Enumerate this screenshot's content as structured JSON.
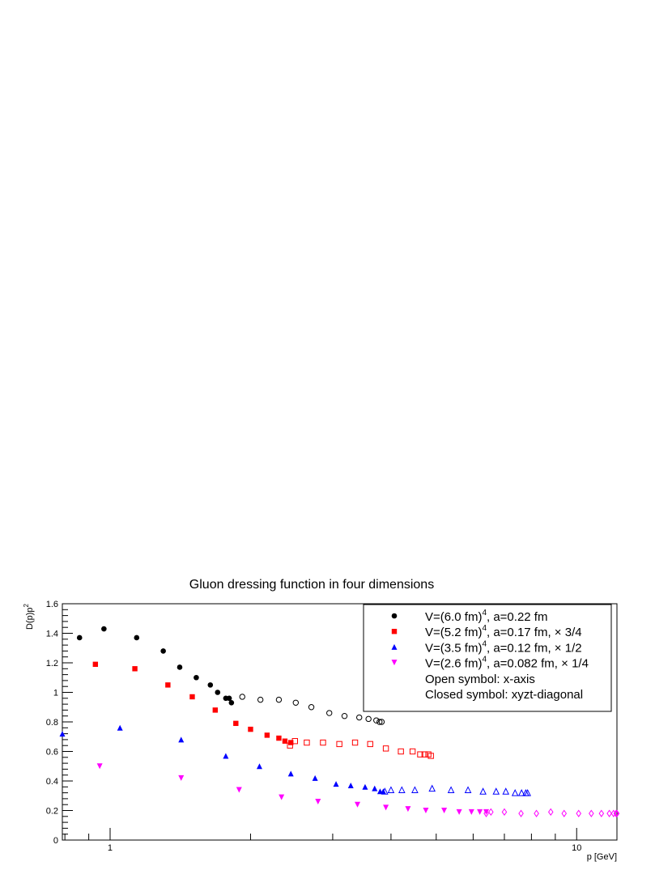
{
  "chart_data": {
    "type": "scatter",
    "title": "Gluon dressing function in four dimensions",
    "xlabel": "p [GeV]",
    "ylabel": "D(p)p",
    "ylabel_sup": "2",
    "xscale": "log",
    "xlim": [
      0.79,
      12.2
    ],
    "ylim": [
      0,
      1.6
    ],
    "x_tick_labels": [
      {
        "value": 1,
        "label": "1"
      },
      {
        "value": 10,
        "label": "10"
      }
    ],
    "y_tick_labels": [
      {
        "value": 0,
        "label": "0"
      },
      {
        "value": 0.2,
        "label": "0.2"
      },
      {
        "value": 0.4,
        "label": "0.4"
      },
      {
        "value": 0.6,
        "label": "0.6"
      },
      {
        "value": 0.8,
        "label": "0.8"
      },
      {
        "value": 1,
        "label": "1"
      },
      {
        "value": 1.2,
        "label": "1.2"
      },
      {
        "value": 1.4,
        "label": "1.4"
      },
      {
        "value": 1.6,
        "label": "1.6"
      }
    ],
    "legend_position": "top-right",
    "series": [
      {
        "name": "V=(6.0 fm)",
        "sup": "4",
        "name_rest": ", a=0.22 fm",
        "color": "#000000",
        "marker": "circle",
        "closed": {
          "x": [
            0.86,
            0.97,
            1.14,
            1.3,
            1.41,
            1.53,
            1.64,
            1.7,
            1.77,
            1.8,
            1.82
          ],
          "y": [
            1.37,
            1.43,
            1.37,
            1.28,
            1.17,
            1.1,
            1.05,
            1.0,
            0.96,
            0.96,
            0.93
          ]
        },
        "open": {
          "x": [
            1.92,
            2.1,
            2.3,
            2.5,
            2.7,
            2.95,
            3.18,
            3.42,
            3.58,
            3.72,
            3.78,
            3.82
          ],
          "y": [
            0.97,
            0.95,
            0.95,
            0.93,
            0.9,
            0.86,
            0.84,
            0.83,
            0.82,
            0.81,
            0.8,
            0.8
          ]
        }
      },
      {
        "name": "V=(5.2 fm)",
        "sup": "4",
        "name_rest": ", a=0.17 fm, × 3/4",
        "color": "#ff0000",
        "marker": "square",
        "closed": {
          "x": [
            0.93,
            1.13,
            1.33,
            1.5,
            1.68,
            1.86,
            2.0,
            2.17,
            2.3,
            2.37,
            2.44
          ],
          "y": [
            1.19,
            1.16,
            1.05,
            0.97,
            0.88,
            0.79,
            0.75,
            0.71,
            0.69,
            0.67,
            0.66
          ]
        },
        "open": {
          "x": [
            2.43,
            2.49,
            2.64,
            2.86,
            3.1,
            3.35,
            3.61,
            3.9,
            4.2,
            4.45,
            4.62,
            4.72,
            4.81,
            4.87
          ],
          "y": [
            0.64,
            0.67,
            0.66,
            0.66,
            0.65,
            0.66,
            0.65,
            0.62,
            0.6,
            0.6,
            0.58,
            0.58,
            0.58,
            0.57
          ]
        }
      },
      {
        "name": "V=(3.5 fm)",
        "sup": "4",
        "name_rest": ", a=0.12 fm, × 1/2",
        "color": "#0000ff",
        "marker": "triangle-up",
        "closed": {
          "x": [
            0.79,
            1.05,
            1.42,
            1.77,
            2.09,
            2.44,
            2.75,
            3.05,
            3.28,
            3.52,
            3.69,
            3.79,
            3.85
          ],
          "y": [
            0.72,
            0.76,
            0.68,
            0.57,
            0.5,
            0.45,
            0.42,
            0.38,
            0.37,
            0.36,
            0.35,
            0.33,
            0.33
          ]
        },
        "open": {
          "x": [
            3.88,
            4.0,
            4.22,
            4.5,
            4.9,
            5.38,
            5.85,
            6.3,
            6.72,
            7.05,
            7.38,
            7.62,
            7.78,
            7.85
          ],
          "y": [
            0.33,
            0.34,
            0.34,
            0.34,
            0.35,
            0.34,
            0.34,
            0.33,
            0.33,
            0.33,
            0.32,
            0.32,
            0.32,
            0.32
          ]
        }
      },
      {
        "name": "V=(2.6 fm)",
        "sup": "4",
        "name_rest": ", a=0.082 fm, × 1/4",
        "color": "#ff00ff",
        "marker": "triangle-down",
        "closed": {
          "x": [
            0.95,
            1.42,
            1.89,
            2.33,
            2.79,
            3.39,
            3.9,
            4.35,
            4.75,
            5.2,
            5.6,
            5.95,
            6.2,
            6.4
          ],
          "y": [
            0.5,
            0.42,
            0.34,
            0.29,
            0.26,
            0.24,
            0.22,
            0.21,
            0.2,
            0.2,
            0.19,
            0.19,
            0.19,
            0.19
          ]
        },
        "open": {
          "x": [
            6.4,
            6.55,
            7.0,
            7.6,
            8.2,
            8.8,
            9.4,
            10.1,
            10.75,
            11.3,
            11.75,
            12.0,
            12.15,
            12.2
          ],
          "y": [
            0.18,
            0.19,
            0.19,
            0.18,
            0.18,
            0.19,
            0.18,
            0.18,
            0.18,
            0.18,
            0.18,
            0.18,
            0.18,
            0.18
          ]
        }
      }
    ],
    "legend_notes": [
      "Open symbol: x-axis",
      "Closed symbol: xyzt-diagonal"
    ]
  }
}
